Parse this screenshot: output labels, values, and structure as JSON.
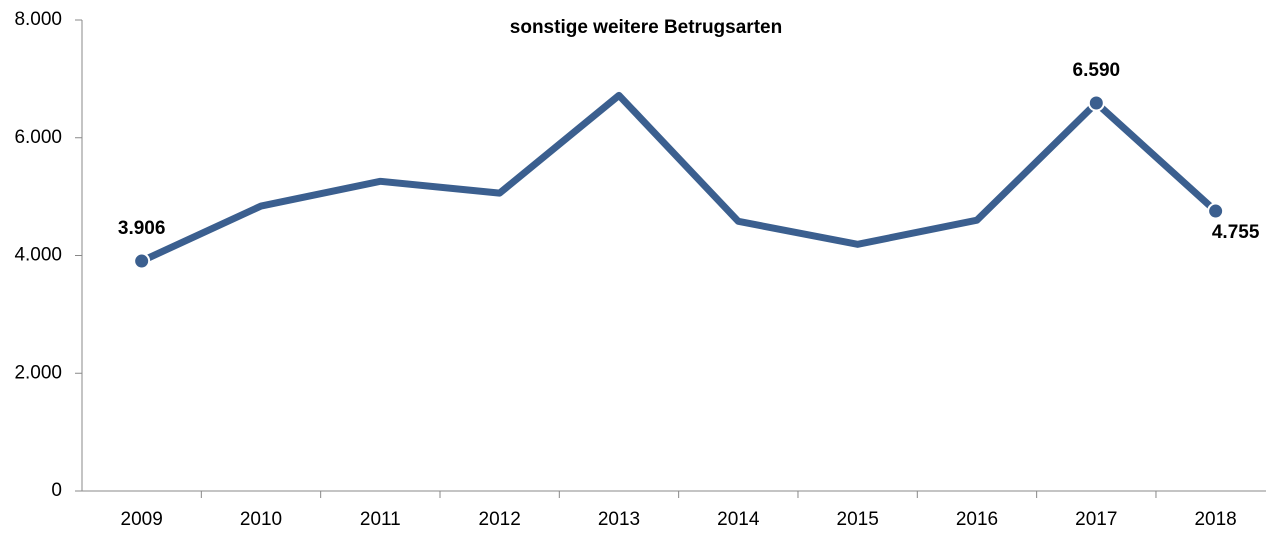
{
  "chart_data": {
    "type": "line",
    "title": "sonstige weitere Betrugsarten",
    "categories": [
      "2009",
      "2010",
      "2011",
      "2012",
      "2013",
      "2014",
      "2015",
      "2016",
      "2017",
      "2018"
    ],
    "series": [
      {
        "name": "sonstige weitere Betrugsarten",
        "color": "#3b5f8f",
        "values": [
          3906,
          4840,
          5260,
          5060,
          6720,
          4580,
          4190,
          4600,
          6590,
          4755
        ],
        "value_labels": [
          "3.906",
          null,
          null,
          null,
          null,
          null,
          null,
          null,
          "6.590",
          "4.755"
        ]
      }
    ],
    "ylim": [
      0,
      8000
    ],
    "yticks": [
      0,
      {
        "value": 2000,
        "label": "2.000"
      },
      {
        "value": 4000,
        "label": "4.000"
      },
      {
        "value": 6000,
        "label": "6.000"
      },
      {
        "value": 8000,
        "label": "8.000"
      }
    ],
    "grid": false
  }
}
